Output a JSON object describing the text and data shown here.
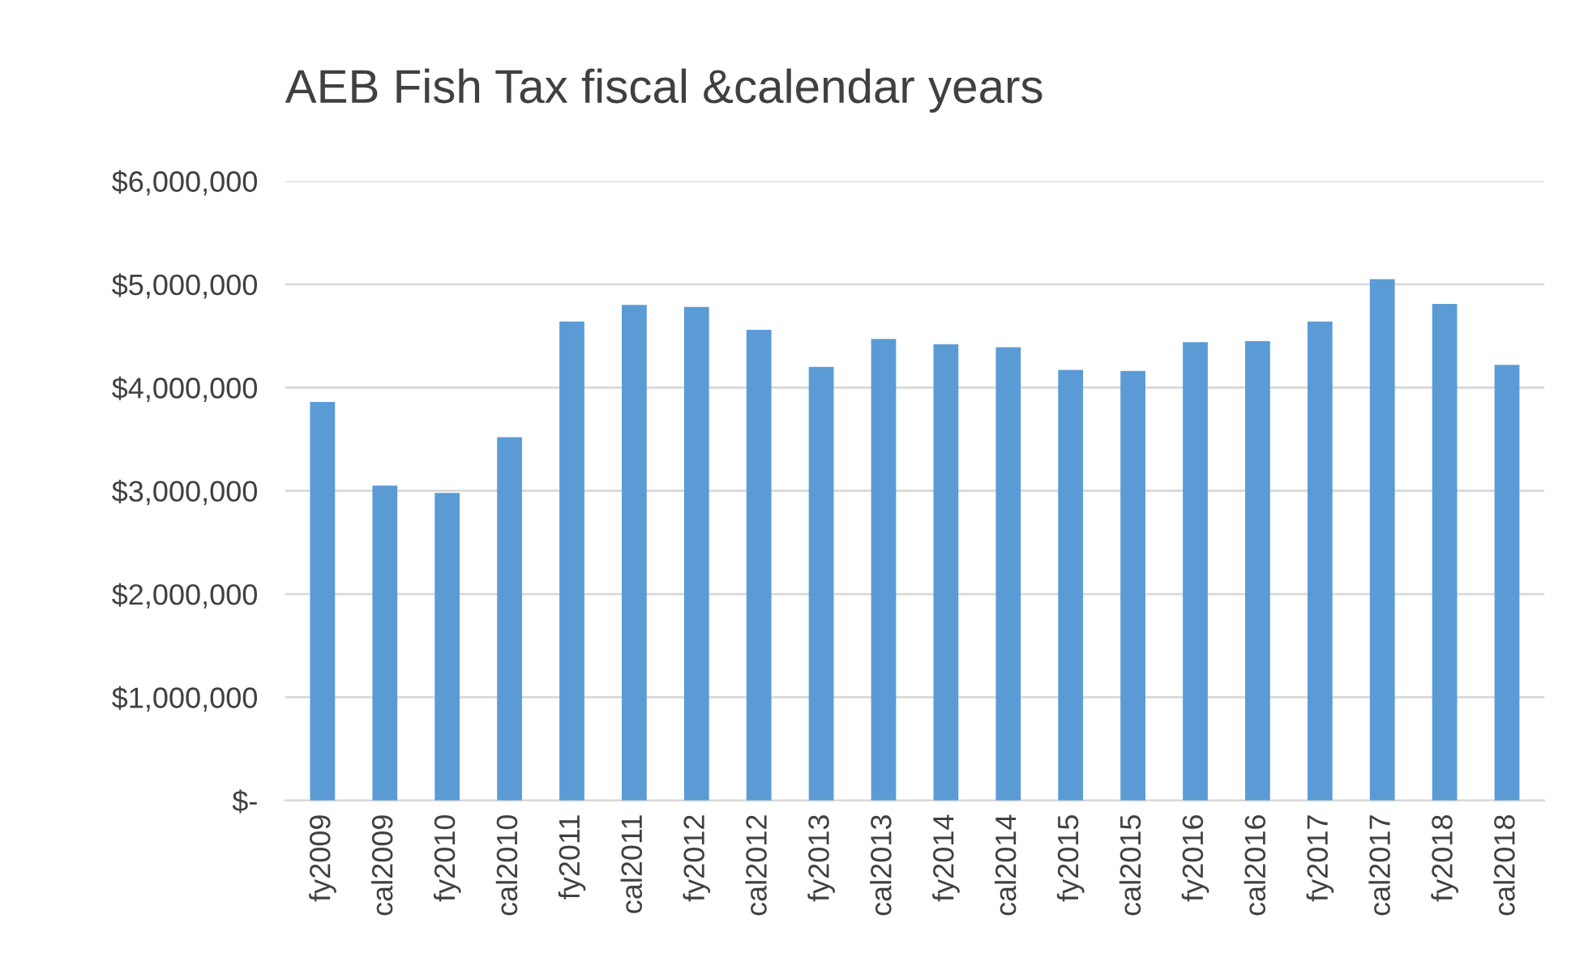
{
  "chart_data": {
    "type": "bar",
    "title": "AEB Fish Tax fiscal &calendar years",
    "categories": [
      "fy2009",
      "cal2009",
      "fy2010",
      "cal2010",
      "fy2011",
      "cal2011",
      "fy2012",
      "cal2012",
      "fy2013",
      "cal2013",
      "fy2014",
      "cal2014",
      "fy2015",
      "cal2015",
      "fy2016",
      "cal2016",
      "fy2017",
      "cal2017",
      "fy2018",
      "cal2018"
    ],
    "values": [
      3860000,
      3050000,
      2980000,
      3520000,
      4640000,
      4800000,
      4780000,
      4560000,
      4200000,
      4470000,
      4420000,
      4390000,
      4170000,
      4160000,
      4440000,
      4450000,
      4640000,
      5050000,
      4810000,
      4220000
    ],
    "color": "#5b9bd5",
    "ylim": [
      0,
      6000000
    ],
    "yticks": [
      {
        "value": 0,
        "label": "$-"
      },
      {
        "value": 1000000,
        "label": "$1,000,000"
      },
      {
        "value": 2000000,
        "label": "$2,000,000"
      },
      {
        "value": 3000000,
        "label": "$3,000,000"
      },
      {
        "value": 4000000,
        "label": "$4,000,000"
      },
      {
        "value": 5000000,
        "label": "$5,000,000"
      },
      {
        "value": 6000000,
        "label": "$6,000,000"
      }
    ],
    "grid": "y",
    "legend": false
  }
}
